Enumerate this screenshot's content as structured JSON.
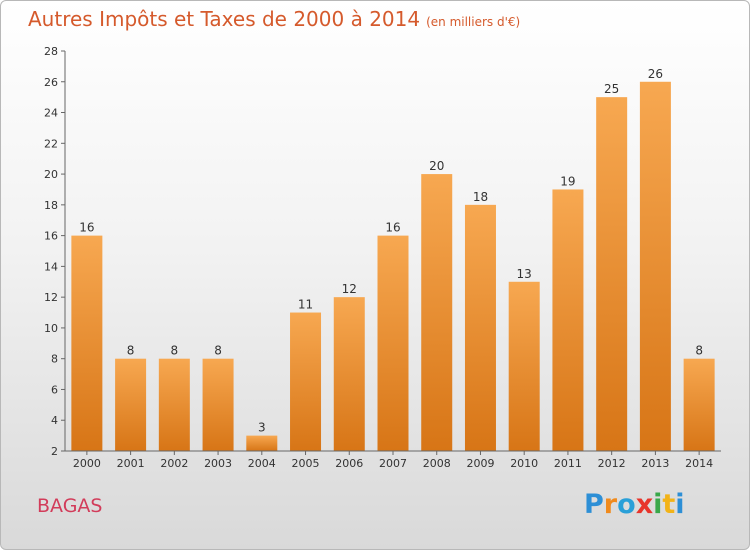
{
  "header": {
    "title": "Autres Impôts et Taxes de 2000 à 2014",
    "subtitle": "(en milliers d'€)"
  },
  "footer": {
    "place": "BAGAS",
    "logo": "Proxiti"
  },
  "colors": {
    "title": "#d55a2c",
    "place": "#d23c5a",
    "bar_light": "#f7a851",
    "bar_dark": "#d77516"
  },
  "chart_data": {
    "type": "bar",
    "title": "Autres Impôts et Taxes de 2000 à 2014",
    "subtitle": "(en milliers d'€)",
    "categories": [
      "2000",
      "2001",
      "2002",
      "2003",
      "2004",
      "2005",
      "2006",
      "2007",
      "2008",
      "2009",
      "2010",
      "2011",
      "2012",
      "2013",
      "2014"
    ],
    "values": [
      16,
      8,
      8,
      8,
      3,
      11,
      12,
      16,
      20,
      18,
      13,
      19,
      25,
      26,
      8
    ],
    "ylim": [
      2,
      28
    ],
    "yticks": [
      2,
      4,
      6,
      8,
      10,
      12,
      14,
      16,
      18,
      20,
      22,
      24,
      26,
      28
    ],
    "grid": false,
    "legend": "none"
  }
}
